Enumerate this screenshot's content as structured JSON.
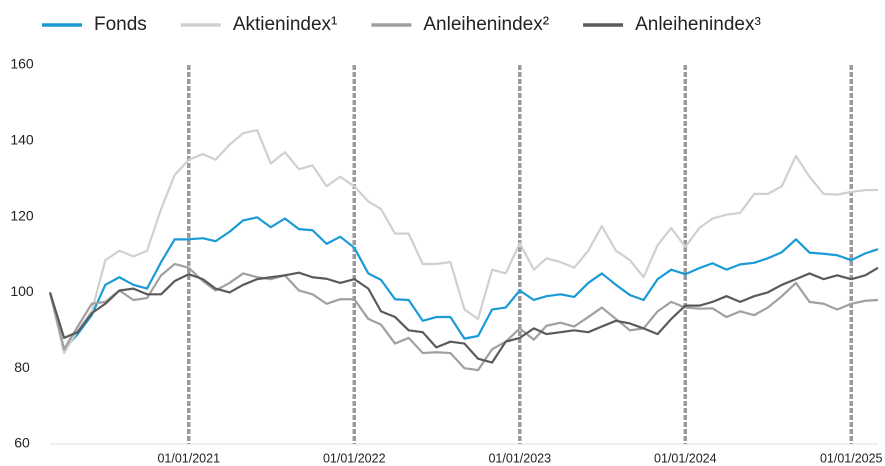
{
  "chart_data": {
    "type": "line",
    "x": [
      "2020-03-01",
      "2020-04-01",
      "2020-05-01",
      "2020-06-01",
      "2020-07-01",
      "2020-08-01",
      "2020-09-01",
      "2020-10-01",
      "2020-11-01",
      "2020-12-01",
      "2021-01-01",
      "2021-02-01",
      "2021-03-01",
      "2021-04-01",
      "2021-05-01",
      "2021-06-01",
      "2021-07-01",
      "2021-08-01",
      "2021-09-01",
      "2021-10-01",
      "2021-11-01",
      "2021-12-01",
      "2022-01-01",
      "2022-02-01",
      "2022-03-01",
      "2022-04-01",
      "2022-05-01",
      "2022-06-01",
      "2022-07-01",
      "2022-08-01",
      "2022-09-01",
      "2022-10-01",
      "2022-11-01",
      "2022-12-01",
      "2023-01-01",
      "2023-02-01",
      "2023-03-01",
      "2023-04-01",
      "2023-05-01",
      "2023-06-01",
      "2023-07-01",
      "2023-08-01",
      "2023-09-01",
      "2023-10-01",
      "2023-11-01",
      "2023-12-01",
      "2024-01-01",
      "2024-02-01",
      "2024-03-01",
      "2024-04-01",
      "2024-05-01",
      "2024-06-01",
      "2024-07-01",
      "2024-08-01",
      "2024-09-01",
      "2024-10-01",
      "2024-11-01",
      "2024-12-01",
      "2025-01-01",
      "2025-02-01",
      "2025-03-01"
    ],
    "series": [
      {
        "name": "Fonds",
        "color": "#1a9ad6",
        "values": [
          100,
          85,
          89,
          94,
          102,
          104,
          102,
          101,
          108,
          114,
          114,
          114.3,
          113.5,
          116,
          119,
          119.8,
          117.2,
          119.5,
          116.7,
          116.4,
          112.8,
          114.7,
          111.8,
          105,
          103.3,
          98.2,
          98,
          92.5,
          93.5,
          93.5,
          87.8,
          88.5,
          95.5,
          96,
          100.5,
          98,
          99,
          99.5,
          98.8,
          102.5,
          105,
          102,
          99.3,
          98,
          103.5,
          106,
          104.8,
          106.4,
          107.7,
          106,
          107.4,
          107.8,
          109,
          110.6,
          114,
          110.5,
          110.2,
          109.8,
          108.5,
          110.3,
          111.4
        ]
      },
      {
        "name": "Aktienindex¹",
        "color": "#d0d0d0",
        "values": [
          100,
          84,
          90,
          95,
          108.5,
          111,
          109.5,
          111,
          122,
          131,
          135,
          136.5,
          135,
          139,
          142,
          142.8,
          134,
          137,
          132.5,
          133.5,
          128,
          130.5,
          128,
          124,
          122,
          115.5,
          115.5,
          107.5,
          107.5,
          108,
          95.5,
          93,
          106,
          105,
          113,
          106,
          109,
          108,
          106.5,
          111,
          117.5,
          111,
          108.5,
          104,
          112.5,
          117,
          112,
          117,
          119.5,
          120.5,
          121,
          126,
          126,
          128,
          136,
          130.5,
          126,
          125.8,
          126.5,
          127,
          127
        ]
      },
      {
        "name": "Anleihenindex²",
        "color": "#a0a0a0",
        "values": [
          100,
          85,
          91,
          97,
          97.5,
          100.5,
          98,
          98.5,
          104.5,
          107.5,
          106.5,
          103,
          100.5,
          102.5,
          105,
          104,
          103.5,
          104.5,
          100.5,
          99.5,
          97,
          98.2,
          98.2,
          93,
          91.5,
          86.5,
          88,
          84,
          84.2,
          84,
          80,
          79.5,
          85,
          87,
          90.5,
          87.5,
          91.2,
          92,
          91,
          93.5,
          96,
          93,
          90,
          90.5,
          95,
          97.5,
          96,
          95.7,
          95.8,
          93.5,
          95,
          94,
          96,
          99,
          102.5,
          97.5,
          97,
          95.5,
          97,
          97.8,
          98
        ]
      },
      {
        "name": "Anleihenindex³",
        "color": "#5a5a5a",
        "values": [
          100,
          88,
          89.5,
          94.5,
          97,
          100.5,
          101,
          99.5,
          99.5,
          103,
          104.8,
          103.5,
          101,
          100,
          102,
          103.5,
          104,
          104.5,
          105.2,
          104,
          103.6,
          102.5,
          103.5,
          101,
          95,
          93.5,
          90,
          89.5,
          85.5,
          87,
          86.5,
          82.5,
          81.5,
          87,
          88,
          90.5,
          89,
          89.5,
          90,
          89.5,
          91,
          92.5,
          91.8,
          90.5,
          89,
          93,
          96.5,
          96.5,
          97.5,
          99,
          97.5,
          99,
          100,
          102,
          103.5,
          105,
          103.5,
          104.5,
          103.5,
          104.5,
          106.5
        ]
      }
    ],
    "xlim": [
      "2020-03-01",
      "2025-03-01"
    ],
    "xticks": [
      {
        "value": "2021-01-01",
        "label": "01/01/2021"
      },
      {
        "value": "2022-01-01",
        "label": "01/01/2022"
      },
      {
        "value": "2023-01-01",
        "label": "01/01/2023"
      },
      {
        "value": "2024-01-01",
        "label": "01/01/2024"
      },
      {
        "value": "2025-01-01",
        "label": "01/01/2025"
      }
    ],
    "ylim": [
      60,
      160
    ],
    "yticks": [
      60,
      80,
      100,
      120,
      140,
      160
    ],
    "grid": "x",
    "legend": "top"
  }
}
